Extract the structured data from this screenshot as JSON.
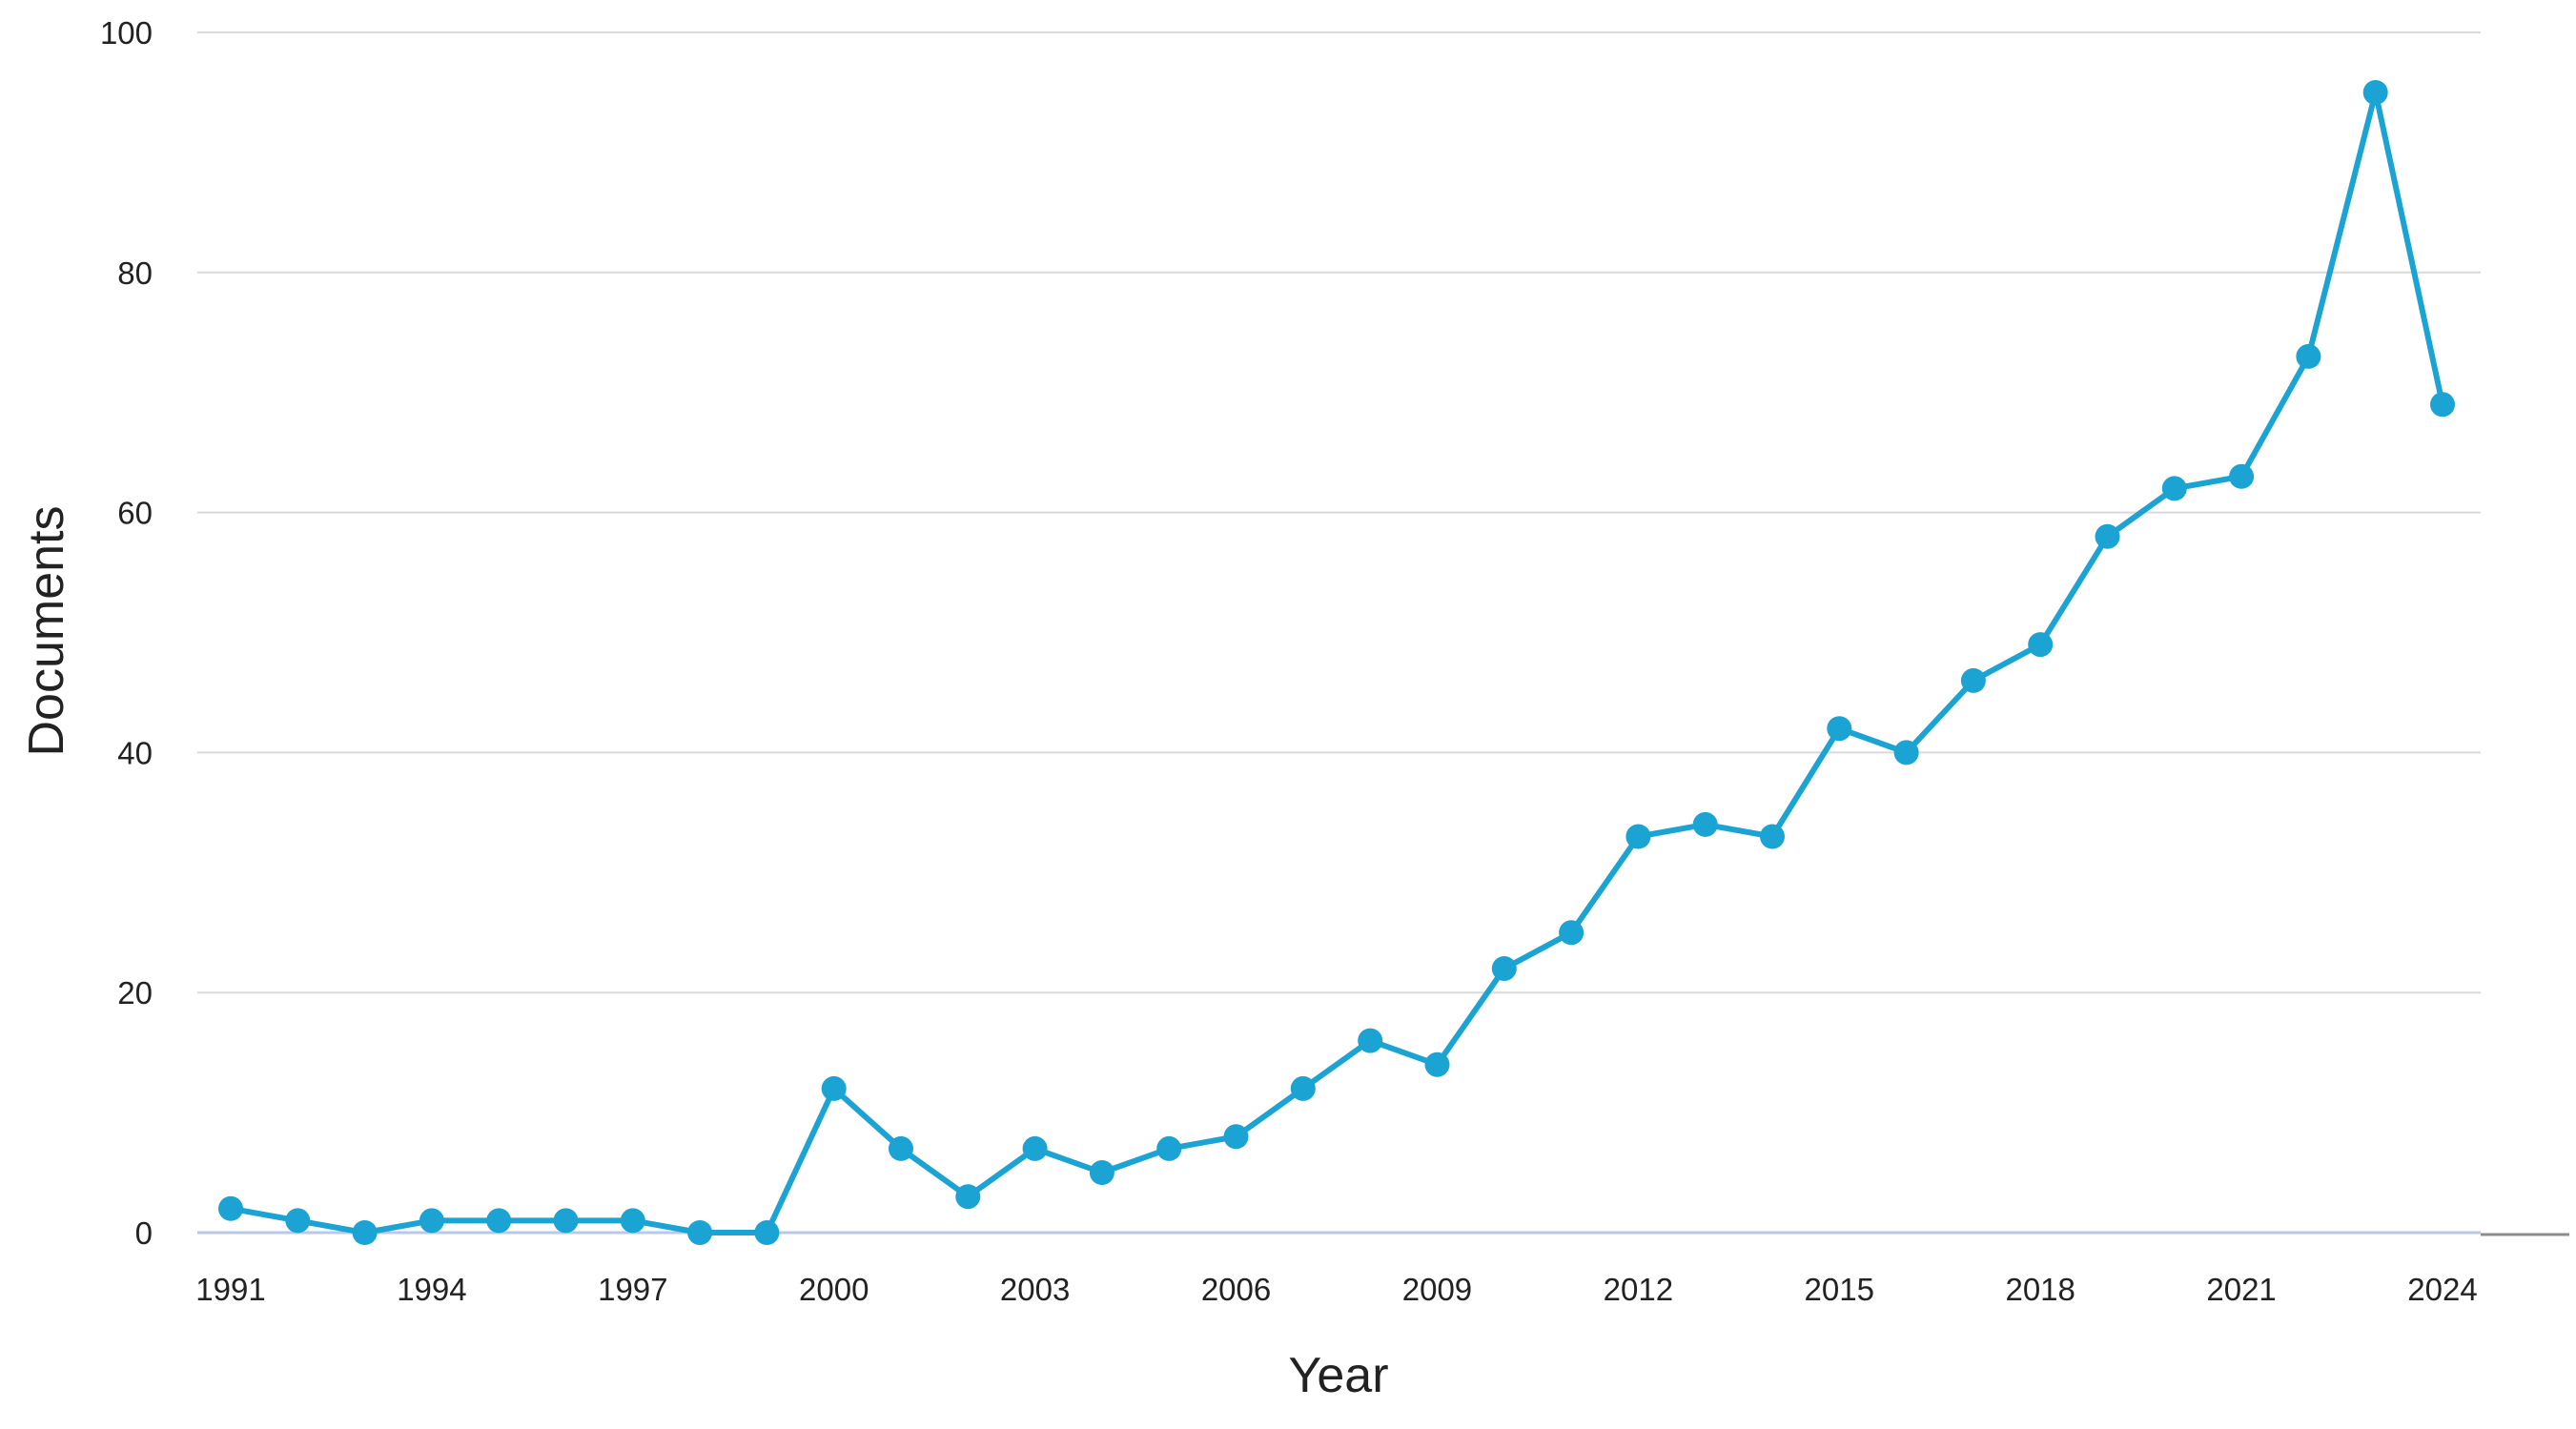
{
  "colors": {
    "series": "#1ba3d3",
    "grid": "#d9d9d9",
    "text": "#222222"
  },
  "chart_data": {
    "type": "line",
    "title": "",
    "xlabel": "Year",
    "ylabel": "Documents",
    "ylim": [
      0,
      100
    ],
    "xlim": [
      1991,
      2024
    ],
    "grid": "horizontal",
    "legend": "none",
    "yticks": [
      "0",
      "20",
      "40",
      "60",
      "80",
      "100"
    ],
    "xticks": [
      "1991",
      "1994",
      "1997",
      "2000",
      "2003",
      "2006",
      "2009",
      "2012",
      "2015",
      "2018",
      "2021",
      "2024"
    ],
    "series": [
      {
        "x": [
          1991,
          1992,
          1993,
          1994,
          1995,
          1996,
          1997,
          1998,
          1999,
          2000,
          2001,
          2002,
          2003,
          2004,
          2005,
          2006,
          2007,
          2008,
          2009,
          2010,
          2011,
          2012,
          2013,
          2014,
          2015,
          2016,
          2017,
          2018,
          2019,
          2020,
          2021,
          2022,
          2023,
          2024
        ],
        "values": [
          2,
          1,
          0,
          1,
          1,
          1,
          1,
          0,
          0,
          12,
          7,
          3,
          7,
          5,
          7,
          8,
          12,
          16,
          14,
          22,
          25,
          33,
          34,
          33,
          42,
          40,
          46,
          49,
          58,
          62,
          63,
          73,
          95,
          69
        ]
      }
    ]
  }
}
